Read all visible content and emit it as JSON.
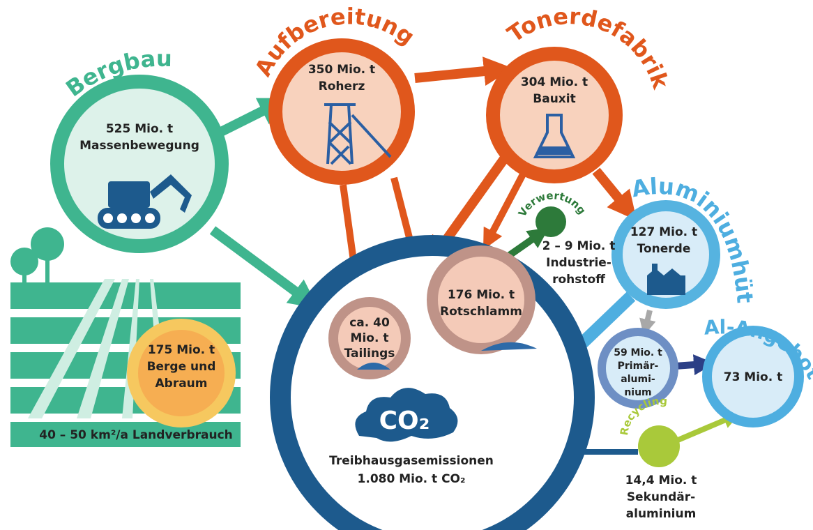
{
  "nodes": [
    {
      "title": "Bergbau",
      "lines": [
        "525 Mio. t",
        "Massenbewegung"
      ]
    },
    {
      "title": "Aufbereitung",
      "lines": [
        "350 Mio. t",
        "Roherz"
      ]
    },
    {
      "title": "Tonerdefabrik",
      "lines": [
        "304 Mio. t",
        "Bauxit"
      ]
    },
    {
      "title": "Aluminiumhütte",
      "lines": [
        "127 Mio. t",
        "Tonerde"
      ]
    },
    {
      "title": "Al-Angebot",
      "lines": [
        "73 Mio. t"
      ]
    },
    {
      "lines": [
        "59 Mio. t",
        "Primär-",
        "alumi-",
        "nium"
      ]
    },
    {
      "title": "Verwertung",
      "lines": [
        "2 – 9 Mio. t",
        "Industrie-",
        "rohstoff"
      ]
    },
    {
      "lines": [
        "176 Mio. t",
        "Rotschlamm"
      ]
    },
    {
      "lines": [
        "ca. 40",
        "Mio. t",
        "Tailings"
      ]
    },
    {
      "lines": [
        "175 Mio. t",
        "Berge und",
        "Abraum"
      ]
    },
    {
      "title": "Recycling",
      "lines": [
        "14,4 Mio. t",
        "Sekundär-",
        "aluminium"
      ]
    }
  ],
  "emissions": {
    "cloud": "CO₂",
    "lines": [
      "Treibhausgasemissionen",
      "1.080 Mio. t CO₂"
    ]
  },
  "land": "40 – 50 km²/a Landverbrauch"
}
